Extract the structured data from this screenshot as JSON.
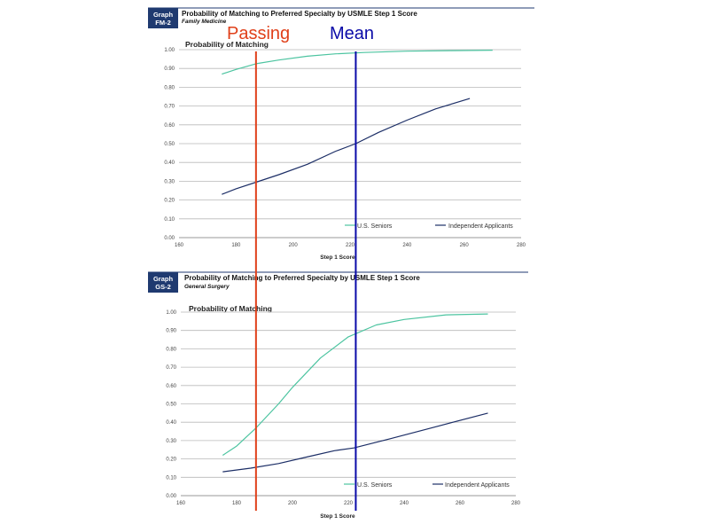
{
  "annotations": {
    "passing": {
      "label": "Passing",
      "x": 187,
      "color": "#e0401a"
    },
    "mean": {
      "label": "Mean",
      "x": 222,
      "color": "#0a0aa8"
    }
  },
  "colors": {
    "us_seniors": "#4cc4a0",
    "independent": "#1c2e66",
    "badge_bg": "#1f3a70"
  },
  "chart_data": [
    {
      "type": "line",
      "graph_label_1": "Graph",
      "graph_label_2": "FM-2",
      "title": "Probability of Matching to Preferred Specialty by USMLE Step 1 Score",
      "subtitle": "Family Medicine",
      "ylabel": "Probability of Matching",
      "xlabel": "Step 1 Score",
      "xlim": [
        160,
        280
      ],
      "ylim": [
        0,
        1
      ],
      "xticks": [
        "160",
        "180",
        "200",
        "220",
        "240",
        "260",
        "280"
      ],
      "yticks": [
        "0.00",
        "0.10",
        "0.20",
        "0.30",
        "0.40",
        "0.50",
        "0.60",
        "0.70",
        "0.80",
        "0.90",
        "1.00"
      ],
      "grid": true,
      "legend_position": "bottom-right",
      "series": [
        {
          "name": "U.S. Seniors",
          "x": [
            175,
            180,
            187,
            195,
            205,
            215,
            225,
            240,
            255,
            270
          ],
          "values": [
            0.87,
            0.895,
            0.925,
            0.945,
            0.965,
            0.978,
            0.985,
            0.992,
            0.995,
            0.997
          ]
        },
        {
          "name": "Independent Applicants",
          "x": [
            175,
            180,
            187,
            195,
            205,
            215,
            222,
            230,
            240,
            250,
            262
          ],
          "values": [
            0.23,
            0.26,
            0.295,
            0.335,
            0.39,
            0.46,
            0.5,
            0.56,
            0.625,
            0.685,
            0.74
          ]
        }
      ]
    },
    {
      "type": "line",
      "graph_label_1": "Graph",
      "graph_label_2": "GS-2",
      "title": "Probability of Matching to Preferred Specialty by USMLE Step 1 Score",
      "subtitle": "General Surgery",
      "ylabel": "Probability of Matching",
      "xlabel": "Step 1 Score",
      "xlim": [
        160,
        280
      ],
      "ylim": [
        0,
        1
      ],
      "xticks": [
        "160",
        "180",
        "200",
        "220",
        "240",
        "260",
        "280"
      ],
      "yticks": [
        "0.00",
        "0.10",
        "0.20",
        "0.30",
        "0.40",
        "0.50",
        "0.60",
        "0.70",
        "0.80",
        "0.90",
        "1.00"
      ],
      "grid": true,
      "legend_position": "bottom-right",
      "series": [
        {
          "name": "U.S. Seniors",
          "x": [
            175,
            180,
            187,
            195,
            200,
            210,
            220,
            230,
            240,
            255,
            270
          ],
          "values": [
            0.22,
            0.27,
            0.37,
            0.5,
            0.59,
            0.75,
            0.865,
            0.93,
            0.96,
            0.985,
            0.99
          ]
        },
        {
          "name": "Independent Applicants",
          "x": [
            175,
            185,
            195,
            205,
            215,
            222,
            235,
            250,
            270
          ],
          "values": [
            0.13,
            0.15,
            0.175,
            0.21,
            0.245,
            0.26,
            0.31,
            0.37,
            0.45
          ]
        }
      ]
    }
  ]
}
